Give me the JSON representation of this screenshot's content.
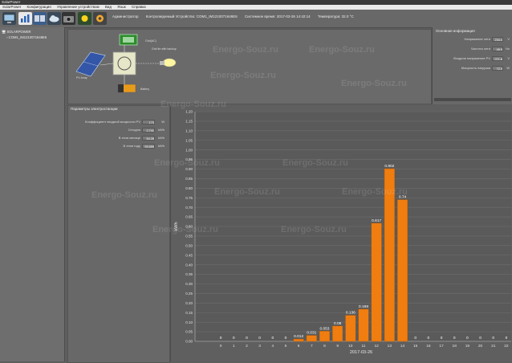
{
  "window": {
    "title": "SolarPower"
  },
  "menu": [
    "SolarPower",
    "Конфигурация",
    "Управление устройством",
    "Вид",
    "Язык",
    "Справка"
  ],
  "toolbar": {
    "icons": [
      "monitor-icon",
      "chart-icon",
      "devices-icon",
      "cloud-icon",
      "camera-icon",
      "sun-icon",
      "settings-icon"
    ]
  },
  "status": {
    "admin": "Администратор",
    "device": "Контролируемый Устройство:  COM1_IM1210071646E6",
    "time": "Системное время:  2017-03-26 14:42:14",
    "temp": "Температура:  32.0 °C"
  },
  "tree": {
    "root": "SOLARPOWER",
    "child": "COM1_IM1210071646E6"
  },
  "diagram": {
    "grid_label": "Grid(AC)",
    "pv_label": "PV Array",
    "output_label": "Grid tie with backup",
    "battery_label": "Battery"
  },
  "basic_info": {
    "title": "Основная информация",
    "rows": [
      {
        "label": "Напряжение сети",
        "value": "234.4",
        "unit": "V"
      },
      {
        "label": "Частота сети",
        "value": "49.9",
        "unit": "Hz"
      },
      {
        "label": "Входное напряжение PV",
        "value": "071.8",
        "unit": "V"
      },
      {
        "label": "Мощность нагрузки",
        "value": "72.0",
        "unit": "W"
      }
    ]
  },
  "pv_params": {
    "title": "Параметры электростанции",
    "rows": [
      {
        "label": "Коэффициент входной мощности PV",
        "value": "173",
        "unit": "W"
      },
      {
        "label": "Сегодня",
        "value": "2.741",
        "unit": "kWh"
      },
      {
        "label": "В этом месяце",
        "value": "54.28",
        "unit": "kWh"
      },
      {
        "label": "В этом году",
        "value": "93.659",
        "unit": "kWh"
      }
    ]
  },
  "watermark": "Energo-Souz.ru",
  "chart_data": {
    "type": "bar",
    "xlabel": "2017-03-26",
    "ylabel": "kWh",
    "ylim": [
      0,
      1.2
    ],
    "yticks": [
      "0.00",
      "0.05",
      "0.10",
      "0.15",
      "0.20",
      "0.25",
      "0.30",
      "0.35",
      "0.40",
      "0.45",
      "0.50",
      "0.55",
      "0.60",
      "0.65",
      "0.70",
      "0.75",
      "0.80",
      "0.85",
      "0.90",
      "0.95",
      "1.00",
      "1.05",
      "1.10",
      "1.15",
      "1.20"
    ],
    "categories": [
      "0",
      "1",
      "2",
      "3",
      "4",
      "5",
      "6",
      "7",
      "8",
      "9",
      "10",
      "11",
      "12",
      "13",
      "14",
      "15",
      "16",
      "17",
      "18",
      "19",
      "20",
      "21",
      "22"
    ],
    "values": [
      0,
      0,
      0,
      0,
      0,
      0,
      0.012,
      0.031,
      0.053,
      0.08,
      0.136,
      0.168,
      0.617,
      0.902,
      0.74,
      0,
      0,
      0,
      0,
      0,
      0,
      0,
      0
    ],
    "labels": [
      "0",
      "0",
      "0",
      "0",
      "0",
      "0",
      "0.012",
      "0.031",
      "0.053",
      "0.08",
      "0.136",
      "0.168",
      "0.617",
      "0.902",
      "0.74",
      "0",
      "0",
      "0",
      "0",
      "0",
      "0",
      "0",
      "0"
    ],
    "bar_color": "#f07d10",
    "grid": true
  },
  "colors": {
    "background": "#5e5e5e",
    "panel": "#686868",
    "bar": "#f07d10"
  }
}
